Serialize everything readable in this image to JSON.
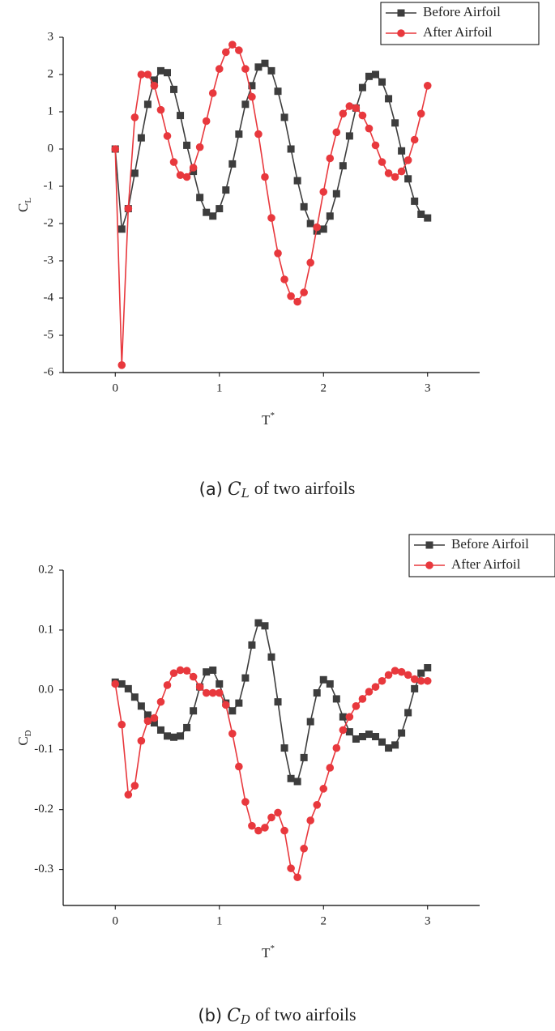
{
  "chart_data": [
    {
      "type": "line",
      "x_label": "T",
      "x_label_sup": "*",
      "y_label": "C",
      "y_label_sub": "L",
      "caption_prefix": "(a)",
      "caption_symbol": "C",
      "caption_sub": "L",
      "caption_suffix": "of two airfoils",
      "x": [
        0,
        0.0625,
        0.125,
        0.1875,
        0.25,
        0.3125,
        0.375,
        0.4375,
        0.5,
        0.5625,
        0.625,
        0.6875,
        0.75,
        0.8125,
        0.875,
        0.9375,
        1,
        1.0625,
        1.125,
        1.1875,
        1.25,
        1.3125,
        1.375,
        1.4375,
        1.5,
        1.5625,
        1.625,
        1.6875,
        1.75,
        1.8125,
        1.875,
        1.9375,
        2,
        2.0625,
        2.125,
        2.1875,
        2.25,
        2.3125,
        2.375,
        2.4375,
        2.5,
        2.5625,
        2.625,
        2.6875,
        2.75,
        2.8125,
        2.875,
        2.9375,
        3
      ],
      "series": [
        {
          "name": "Before Airfoil",
          "color": "#3d3d3d",
          "marker": "square",
          "values": [
            0,
            -2.15,
            -1.6,
            -0.65,
            0.3,
            1.2,
            1.85,
            2.1,
            2.05,
            1.6,
            0.9,
            0.1,
            -0.6,
            -1.3,
            -1.7,
            -1.8,
            -1.6,
            -1.1,
            -0.4,
            0.4,
            1.2,
            1.7,
            2.2,
            2.3,
            2.1,
            1.55,
            0.85,
            0,
            -0.85,
            -1.55,
            -2.0,
            -2.2,
            -2.15,
            -1.8,
            -1.2,
            -0.45,
            0.35,
            1.1,
            1.65,
            1.95,
            2.0,
            1.8,
            1.35,
            0.7,
            -0.05,
            -0.8,
            -1.4,
            -1.75,
            -1.85
          ]
        },
        {
          "name": "After Airfoil",
          "color": "#e8383d",
          "marker": "circle",
          "values": [
            0,
            -5.8,
            -1.6,
            0.85,
            2.0,
            2.0,
            1.7,
            1.05,
            0.35,
            -0.35,
            -0.7,
            -0.75,
            -0.5,
            0.05,
            0.75,
            1.5,
            2.15,
            2.6,
            2.8,
            2.65,
            2.15,
            1.4,
            0.4,
            -0.75,
            -1.85,
            -2.8,
            -3.5,
            -3.95,
            -4.1,
            -3.85,
            -3.05,
            -2.1,
            -1.15,
            -0.25,
            0.45,
            0.95,
            1.15,
            1.1,
            0.9,
            0.55,
            0.1,
            -0.35,
            -0.65,
            -0.75,
            -0.6,
            -0.3,
            0.25,
            0.95,
            1.7
          ]
        }
      ],
      "xlim": [
        -0.5,
        3.5
      ],
      "xticks": [
        0,
        1,
        2,
        3
      ],
      "ylim": [
        -6,
        3
      ],
      "yticks": [
        -6,
        -5,
        -4,
        -3,
        -2,
        -1,
        0,
        1,
        2,
        3
      ],
      "legend": "upper right"
    },
    {
      "type": "line",
      "x_label": "T",
      "x_label_sup": "*",
      "y_label": "C",
      "y_label_sub": "D",
      "caption_prefix": "(b)",
      "caption_symbol": "C",
      "caption_sub": "D",
      "caption_suffix": "of two airfoils",
      "x": [
        0,
        0.0625,
        0.125,
        0.1875,
        0.25,
        0.3125,
        0.375,
        0.4375,
        0.5,
        0.5625,
        0.625,
        0.6875,
        0.75,
        0.8125,
        0.875,
        0.9375,
        1,
        1.0625,
        1.125,
        1.1875,
        1.25,
        1.3125,
        1.375,
        1.4375,
        1.5,
        1.5625,
        1.625,
        1.6875,
        1.75,
        1.8125,
        1.875,
        1.9375,
        2,
        2.0625,
        2.125,
        2.1875,
        2.25,
        2.3125,
        2.375,
        2.4375,
        2.5,
        2.5625,
        2.625,
        2.6875,
        2.75,
        2.8125,
        2.875,
        2.9375,
        3
      ],
      "series": [
        {
          "name": "Before Airfoil",
          "color": "#3d3d3d",
          "marker": "square",
          "values": [
            0.013,
            0.01,
            0.002,
            -0.012,
            -0.027,
            -0.042,
            -0.055,
            -0.067,
            -0.077,
            -0.079,
            -0.077,
            -0.063,
            -0.035,
            0.005,
            0.03,
            0.033,
            0.01,
            -0.022,
            -0.035,
            -0.022,
            0.02,
            0.075,
            0.112,
            0.107,
            0.055,
            -0.02,
            -0.097,
            -0.148,
            -0.153,
            -0.113,
            -0.053,
            -0.005,
            0.017,
            0.01,
            -0.015,
            -0.045,
            -0.07,
            -0.082,
            -0.078,
            -0.074,
            -0.078,
            -0.087,
            -0.097,
            -0.092,
            -0.072,
            -0.038,
            0.002,
            0.028,
            0.037
          ]
        },
        {
          "name": "After Airfoil",
          "color": "#e8383d",
          "marker": "circle",
          "values": [
            0.01,
            -0.058,
            -0.175,
            -0.16,
            -0.085,
            -0.052,
            -0.047,
            -0.02,
            0.008,
            0.028,
            0.033,
            0.032,
            0.022,
            0.005,
            -0.005,
            -0.005,
            -0.005,
            -0.025,
            -0.073,
            -0.128,
            -0.187,
            -0.227,
            -0.235,
            -0.23,
            -0.213,
            -0.205,
            -0.235,
            -0.298,
            -0.313,
            -0.265,
            -0.218,
            -0.192,
            -0.165,
            -0.13,
            -0.097,
            -0.067,
            -0.045,
            -0.027,
            -0.015,
            -0.003,
            0.005,
            0.015,
            0.025,
            0.032,
            0.03,
            0.025,
            0.018,
            0.015,
            0.015
          ]
        }
      ],
      "xlim": [
        -0.5,
        3.5
      ],
      "xticks": [
        0,
        1,
        2,
        3
      ],
      "ylim": [
        -0.36,
        0.2
      ],
      "yticks": [
        0.2,
        0.1,
        {
          "value": 0,
          "label": "0.0"
        },
        -0.1,
        -0.2,
        -0.3
      ],
      "legend": "upper right"
    }
  ]
}
